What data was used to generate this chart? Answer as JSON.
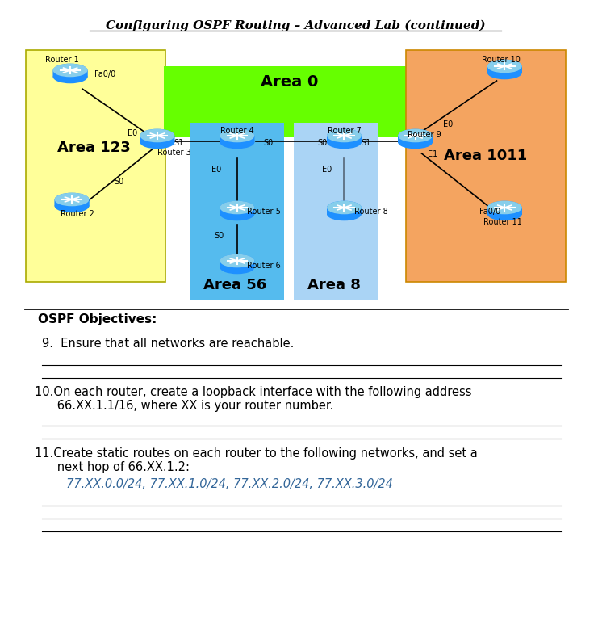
{
  "title": "Configuring OSPF Routing – Advanced Lab (continued)",
  "bg_color": "#ffffff",
  "area123_color": "#ffff99",
  "area0_color": "#66ff00",
  "area56_color": "#55bbee",
  "area8_color": "#aad4f5",
  "area1011_color": "#f4a460",
  "router_body_color": "#1e90ff",
  "router_shade_color": "#87ceeb",
  "objectives_title": "OSPF Objectives:",
  "item9": "9.  Ensure that all networks are reachable.",
  "item10_line1": "10.On each router, create a loopback interface with the following address",
  "item10_line2": "      66.XX.1.1/16, where XX is your router number.",
  "item11_line1": "11.Create static routes on each router to the following networks, and set a",
  "item11_line2": "      next hop of 66.XX.1.2:",
  "item11_networks": "     77.XX.0.0/24, 77.XX.1.0/24, 77.XX.2.0/24, 77.XX.3.0/24"
}
